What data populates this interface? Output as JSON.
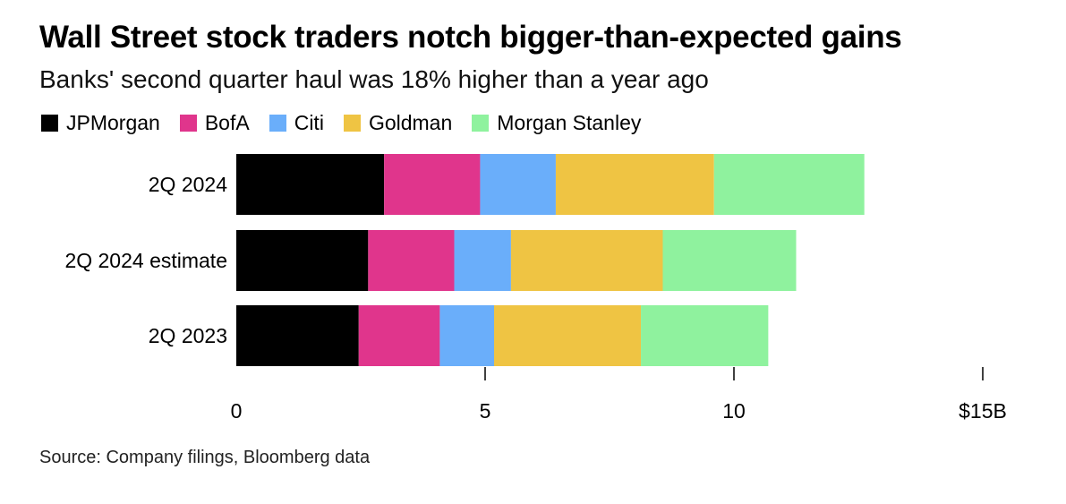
{
  "title": "Wall Street stock traders notch bigger-than-expected gains",
  "subtitle": "Banks' second quarter haul was 18% higher than a year ago",
  "source": "Source: Company filings, Bloomberg data",
  "chart_data": {
    "type": "bar",
    "orientation": "horizontal",
    "stacked": true,
    "title": "Wall Street stock traders notch bigger-than-expected gains",
    "subtitle": "Banks' second quarter haul was 18% higher than a year ago",
    "xlabel": "",
    "ylabel": "",
    "xlim": [
      0,
      15
    ],
    "ticks": [
      0,
      5,
      10,
      15
    ],
    "tick_labels": [
      "0",
      "5",
      "10",
      "$15B"
    ],
    "categories": [
      "2Q 2024",
      "2Q 2024 estimate",
      "2Q 2023"
    ],
    "legend_position": "top-left",
    "series": [
      {
        "name": "JPMorgan",
        "color": "#000000",
        "values": [
          2.97,
          2.65,
          2.46
        ]
      },
      {
        "name": "BofA",
        "color": "#e0358c",
        "values": [
          1.93,
          1.73,
          1.63
        ]
      },
      {
        "name": "Citi",
        "color": "#6aaefa",
        "values": [
          1.52,
          1.14,
          1.09
        ]
      },
      {
        "name": "Goldman",
        "color": "#efc443",
        "values": [
          3.18,
          3.05,
          2.95
        ]
      },
      {
        "name": "Morgan Stanley",
        "color": "#8ff29e",
        "values": [
          3.02,
          2.68,
          2.56
        ]
      }
    ]
  }
}
